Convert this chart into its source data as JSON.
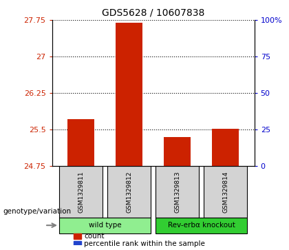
{
  "title": "GDS5628 / 10607838",
  "samples": [
    "GSM1329811",
    "GSM1329812",
    "GSM1329813",
    "GSM1329814"
  ],
  "groups": [
    {
      "label": "wild type",
      "indices": [
        0,
        1
      ],
      "color": "#90ee90"
    },
    {
      "label": "Rev-erbα knockout",
      "indices": [
        2,
        3
      ],
      "color": "#32cd32"
    }
  ],
  "count_values": [
    25.72,
    27.7,
    25.35,
    25.52
  ],
  "percentile_values": [
    3.5,
    4.0,
    4.5,
    3.8
  ],
  "ymin": 24.75,
  "ymax": 27.75,
  "yticks": [
    24.75,
    25.5,
    26.25,
    27.0,
    27.75
  ],
  "ytick_labels": [
    "24.75",
    "25.5",
    "26.25",
    "27",
    "27.75"
  ],
  "right_yticks": [
    0,
    25,
    50,
    75,
    100
  ],
  "right_ytick_labels": [
    "0",
    "25",
    "50",
    "75",
    "100%"
  ],
  "bar_color_red": "#cc2200",
  "bar_color_blue": "#2244cc",
  "label_color_left": "#cc2200",
  "label_color_right": "#0000cc",
  "base_value": 24.75,
  "bar_width": 0.55,
  "group_label": "genotype/variation",
  "legend_count": "count",
  "legend_pct": "percentile rank within the sample"
}
